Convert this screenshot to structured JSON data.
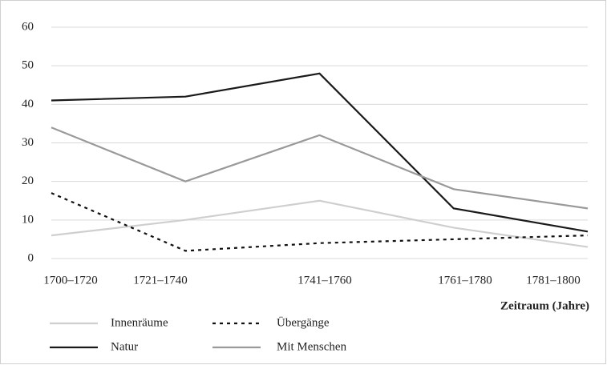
{
  "chart_data": {
    "type": "line",
    "x_label": "Zeitraum (Jahre)",
    "categories": [
      "1700–1720",
      "1721–1740",
      "1741–1760",
      "1761–1780",
      "1781–1800"
    ],
    "series": [
      {
        "name": "Innenräume",
        "color": "#cfcfcf",
        "dash": false,
        "values": [
          6,
          10,
          15,
          8,
          3
        ]
      },
      {
        "name": "Übergänge",
        "color": "#111111",
        "dash": true,
        "values": [
          17,
          2,
          4,
          5,
          6
        ]
      },
      {
        "name": "Natur",
        "color": "#1a1a1a",
        "dash": false,
        "values": [
          41,
          42,
          48,
          13,
          7
        ]
      },
      {
        "name": "Mit Menschen",
        "color": "#9a9a9a",
        "dash": false,
        "values": [
          34,
          20,
          32,
          18,
          13
        ]
      }
    ],
    "ylim": [
      0,
      60
    ],
    "yticks": [
      0,
      10,
      20,
      30,
      40,
      50,
      60
    ],
    "grid": true
  }
}
